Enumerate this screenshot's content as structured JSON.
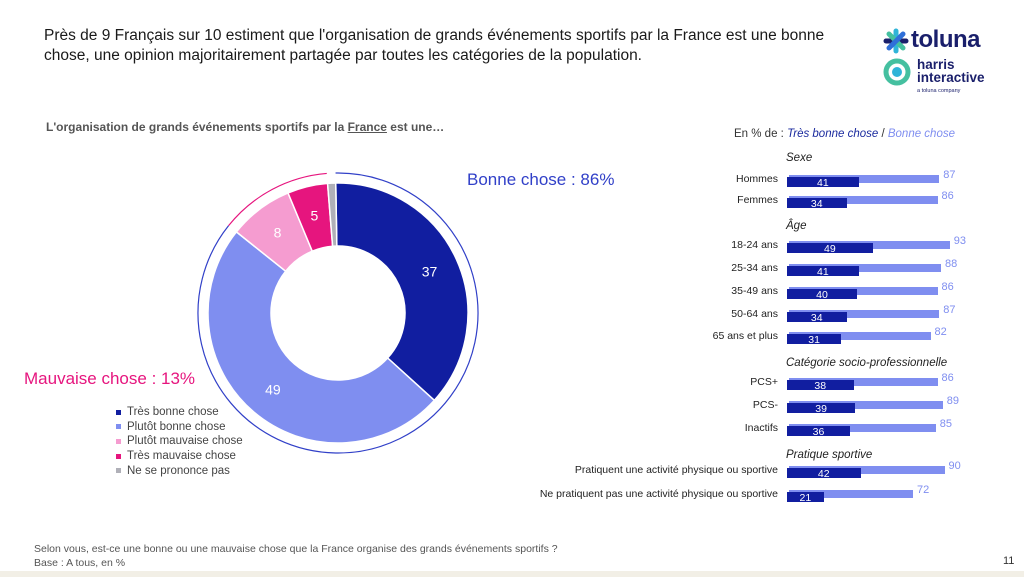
{
  "headline": "Près de 9 Français sur 10 estiment que l'organisation de grands événements sportifs par la France est une bonne chose, une opinion majoritairement partagée par toutes les catégories de la population.",
  "logo": {
    "brand": "toluna",
    "sub_brand_line1": "harris",
    "sub_brand_line2": "interactive",
    "tagline": "a toluna company"
  },
  "donut_title_part1": "L'organisation de grands événements sportifs par la ",
  "donut_title_underlined": "France",
  "donut_title_part2": " est une…",
  "bonne_chose_label": "Bonne chose : 86%",
  "mauvaise_chose_label": "Mauvaise chose : 13%",
  "right_header": {
    "prefix": "En % de : ",
    "series1": "Très bonne chose",
    "sep": " / ",
    "series2": "Bonne chose"
  },
  "footnote_line1": "Selon vous, est-ce une bonne ou une mauvaise chose que la France organise des grands événements sportifs ?",
  "footnote_line2": "Base : A tous, en %",
  "page_number": "11",
  "colors": {
    "dark_blue": "#111ea0",
    "light_blue": "#7f8ef0",
    "pink_light": "#f59cd0",
    "pink_dark": "#e6157e",
    "grey": "#b0b0b8"
  },
  "chart_data": [
    {
      "type": "pie",
      "categories": [
        "Très bonne chose",
        "Plutôt bonne chose",
        "Plutôt mauvaise chose",
        "Très mauvaise chose",
        "Ne se prononce pas"
      ],
      "values": [
        37,
        49,
        8,
        5,
        1
      ],
      "data_labels": [
        "37",
        "49",
        "8",
        "5",
        ""
      ],
      "colors": [
        "#111ea0",
        "#7f8ef0",
        "#f59cd0",
        "#e6157e",
        "#b0b0b8"
      ],
      "legend_position": "bottom-left"
    },
    {
      "type": "bar",
      "series": [
        {
          "name": "Très bonne chose",
          "color": "#111ea0"
        },
        {
          "name": "Bonne chose",
          "color": "#7f8ef0"
        }
      ],
      "groups": [
        {
          "label": "Sexe",
          "rows": [
            {
              "label": "Hommes",
              "tres": 41,
              "bonne": 87
            },
            {
              "label": "Femmes",
              "tres": 34,
              "bonne": 86
            }
          ]
        },
        {
          "label": "Âge",
          "rows": [
            {
              "label": "18-24 ans",
              "tres": 49,
              "bonne": 93
            },
            {
              "label": "25-34 ans",
              "tres": 41,
              "bonne": 88
            },
            {
              "label": "35-49 ans",
              "tres": 40,
              "bonne": 86
            },
            {
              "label": "50-64 ans",
              "tres": 34,
              "bonne": 87
            },
            {
              "label": "65 ans et plus",
              "tres": 31,
              "bonne": 82
            }
          ]
        },
        {
          "label": "Catégorie socio-professionnelle",
          "rows": [
            {
              "label": "PCS+",
              "tres": 38,
              "bonne": 86
            },
            {
              "label": "PCS-",
              "tres": 39,
              "bonne": 89
            },
            {
              "label": "Inactifs",
              "tres": 36,
              "bonne": 85
            }
          ]
        },
        {
          "label": "Pratique sportive",
          "rows": [
            {
              "label": "Pratiquent une activité physique ou sportive",
              "tres": 42,
              "bonne": 90
            },
            {
              "label": "Ne pratiquent pas une activité physique ou sportive",
              "tres": 21,
              "bonne": 72
            }
          ]
        }
      ]
    }
  ]
}
